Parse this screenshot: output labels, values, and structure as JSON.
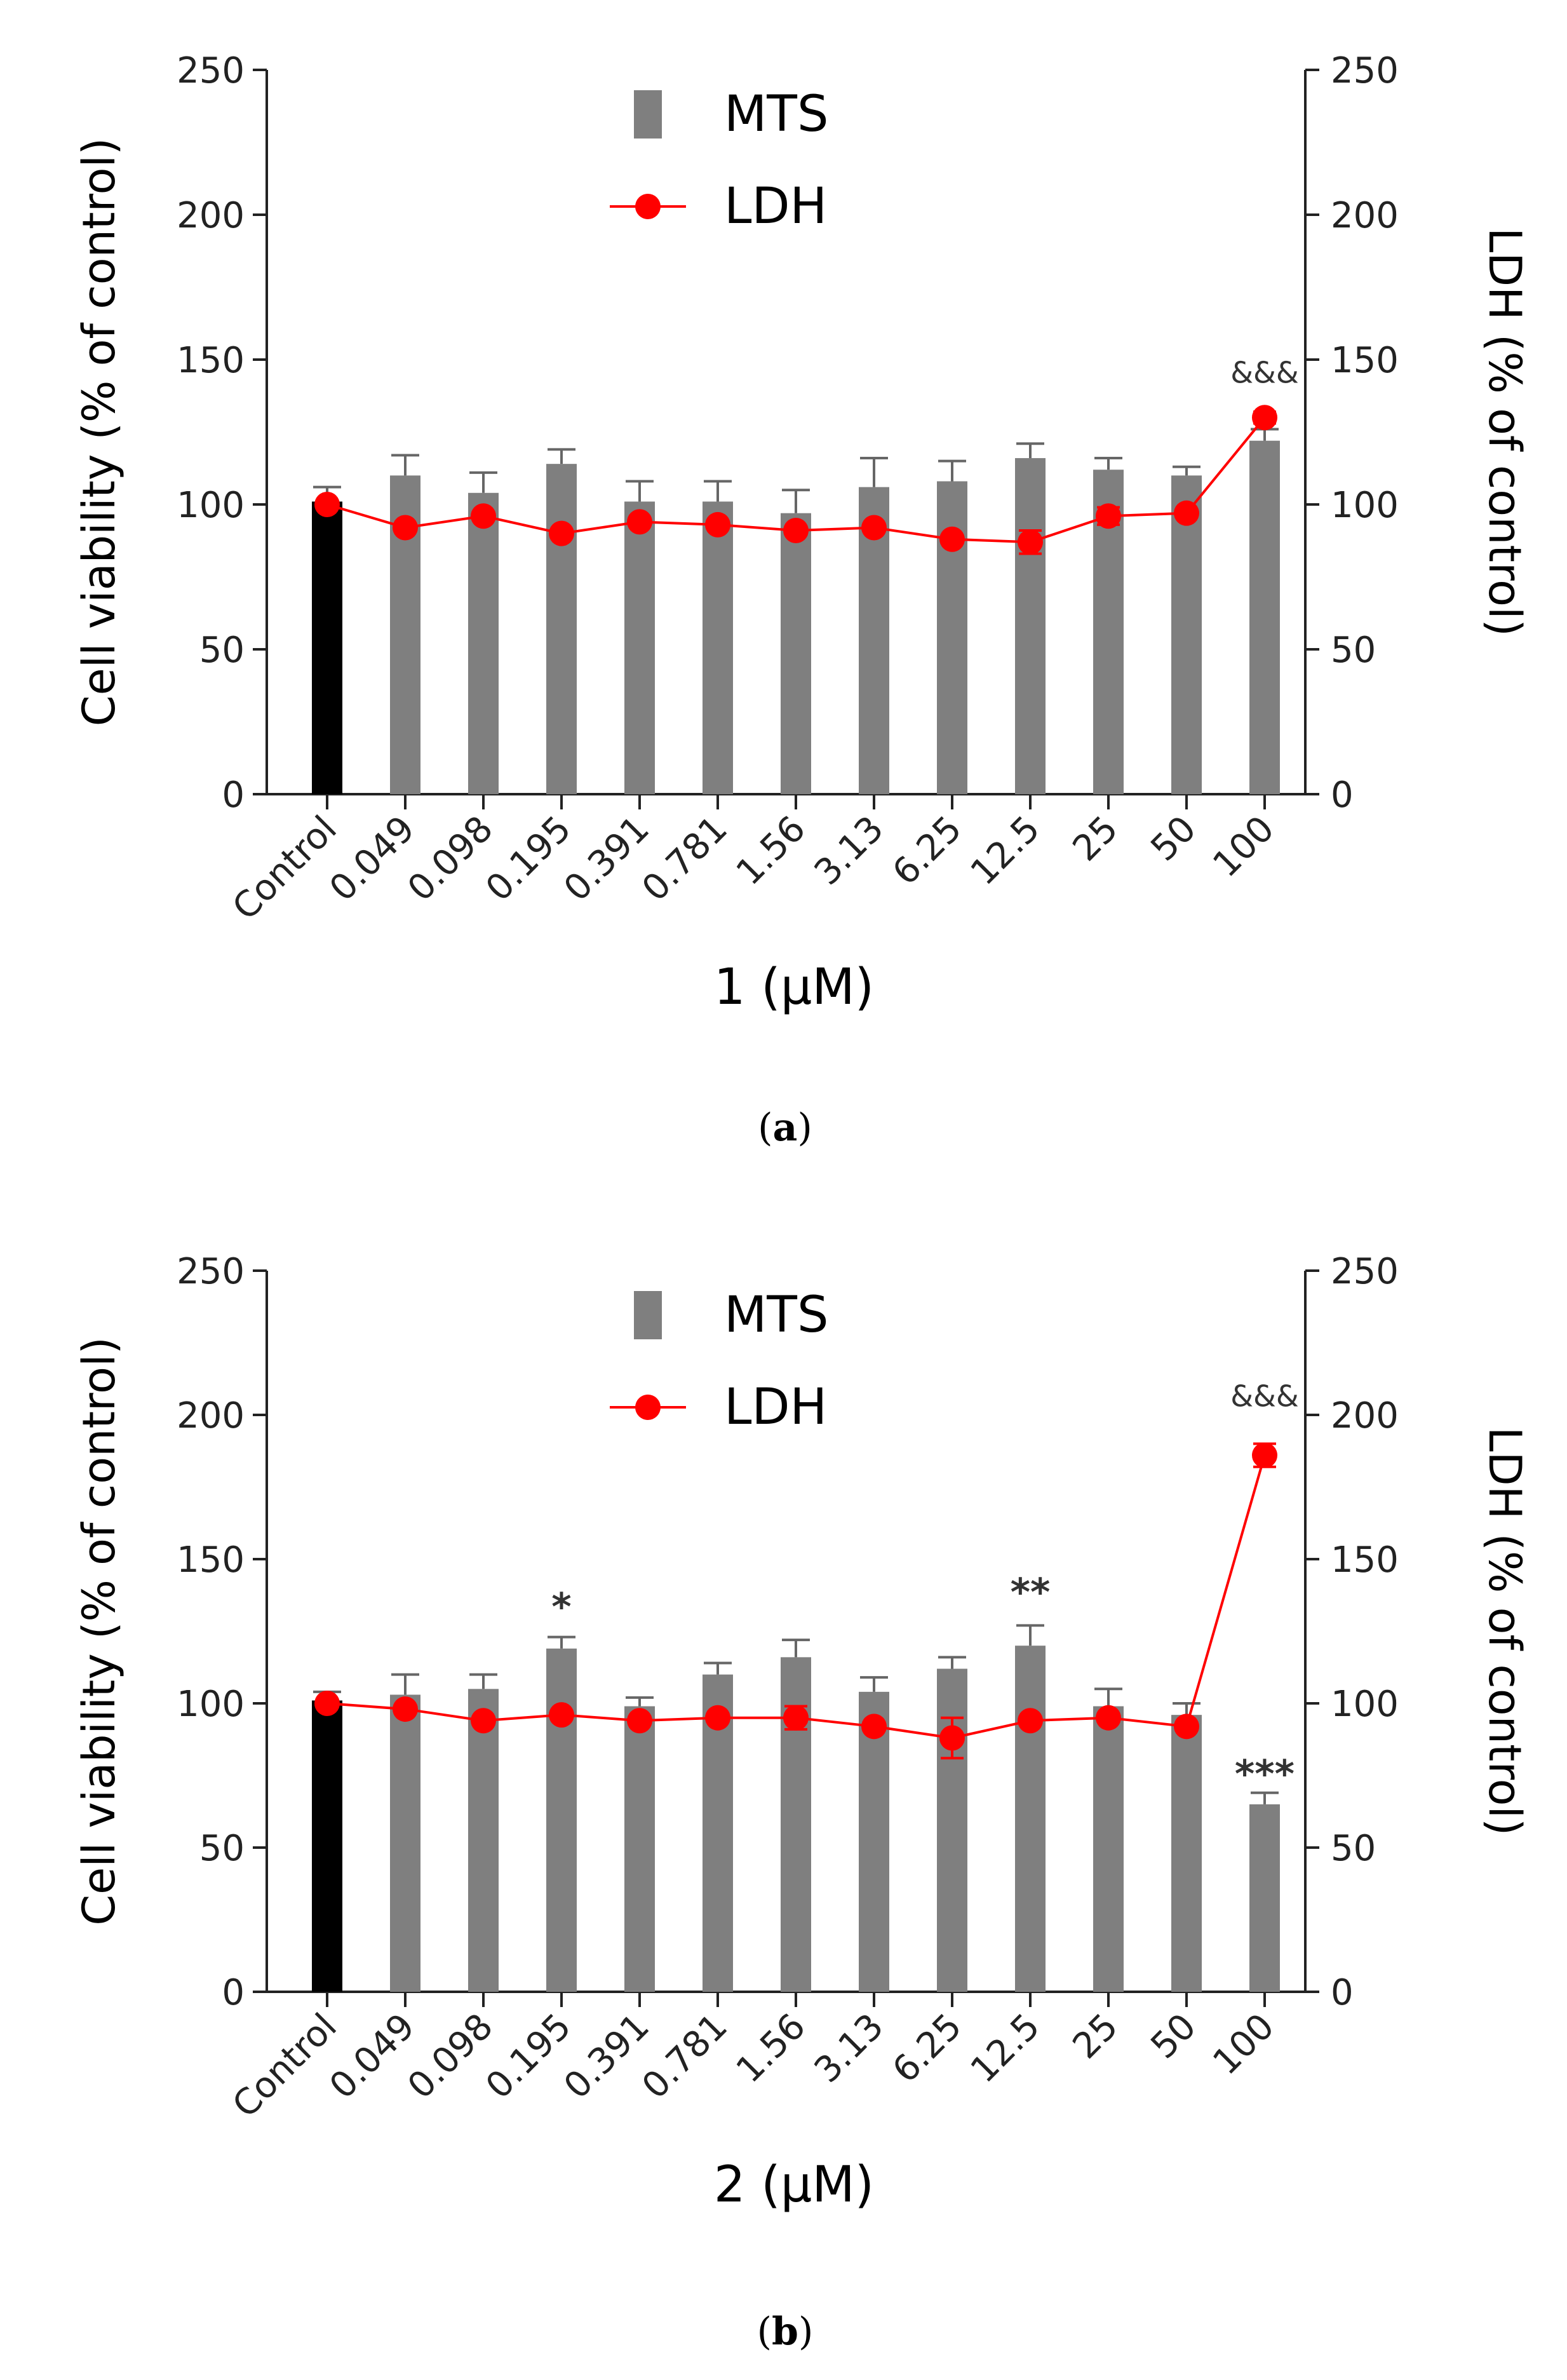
{
  "chart_data": [
    {
      "type": "bar",
      "panel_label": "a",
      "xlabel": "1 (μM)",
      "ylabel": "Cell viability (% of control)",
      "ylabel_right": "LDH (% of control)",
      "ylim": [
        0,
        250
      ],
      "ylim_right": [
        0,
        250
      ],
      "yticks": [
        0,
        50,
        100,
        150,
        200,
        250
      ],
      "grid": false,
      "legend_position": "top-center",
      "categories": [
        "Control",
        "0.049",
        "0.098",
        "0.195",
        "0.391",
        "0.781",
        "1.56",
        "3.13",
        "6.25",
        "12.5",
        "25",
        "50",
        "100"
      ],
      "series": [
        {
          "name": "MTS",
          "kind": "bar",
          "axis": "left",
          "color": "#7f7f7f",
          "control_color": "#000000",
          "values": [
            101,
            110,
            104,
            114,
            101,
            101,
            97,
            106,
            108,
            116,
            112,
            110,
            122
          ],
          "errors": [
            5,
            7,
            7,
            5,
            7,
            7,
            8,
            10,
            7,
            5,
            4,
            3,
            4
          ]
        },
        {
          "name": "LDH",
          "kind": "line",
          "axis": "right",
          "color": "#ff0000",
          "values": [
            100,
            92,
            96,
            90,
            94,
            93,
            91,
            92,
            88,
            87,
            96,
            97,
            130
          ],
          "errors": [
            0,
            0,
            0,
            0,
            0,
            0,
            0,
            0,
            0,
            4,
            3,
            0,
            2
          ]
        }
      ],
      "annotations": [
        {
          "category": "100",
          "text": "&&&",
          "y": 142
        }
      ]
    },
    {
      "type": "bar",
      "panel_label": "b",
      "xlabel": "2 (μM)",
      "ylabel": "Cell viability (% of control)",
      "ylabel_right": "LDH (% of control)",
      "ylim": [
        0,
        250
      ],
      "ylim_right": [
        0,
        250
      ],
      "yticks": [
        0,
        50,
        100,
        150,
        200,
        250
      ],
      "grid": false,
      "legend_position": "top-center",
      "categories": [
        "Control",
        "0.049",
        "0.098",
        "0.195",
        "0.391",
        "0.781",
        "1.56",
        "3.13",
        "6.25",
        "12.5",
        "25",
        "50",
        "100"
      ],
      "series": [
        {
          "name": "MTS",
          "kind": "bar",
          "axis": "left",
          "color": "#7f7f7f",
          "control_color": "#000000",
          "values": [
            101,
            103,
            105,
            119,
            99,
            110,
            116,
            104,
            112,
            120,
            99,
            96,
            65
          ],
          "errors": [
            3,
            7,
            5,
            4,
            3,
            4,
            6,
            5,
            4,
            7,
            6,
            4,
            4
          ]
        },
        {
          "name": "LDH",
          "kind": "line",
          "axis": "right",
          "color": "#ff0000",
          "values": [
            100,
            98,
            94,
            96,
            94,
            95,
            95,
            92,
            88,
            94,
            95,
            92,
            186
          ],
          "errors": [
            0,
            0,
            0,
            0,
            0,
            0,
            4,
            0,
            7,
            0,
            0,
            0,
            4
          ]
        }
      ],
      "annotations": [
        {
          "category": "0.195",
          "text": "*",
          "y": 129
        },
        {
          "category": "12.5",
          "text": "**",
          "y": 134
        },
        {
          "category": "100",
          "text": "&&&",
          "y": 203
        },
        {
          "category": "100",
          "text": "***",
          "y": 71
        }
      ]
    }
  ]
}
